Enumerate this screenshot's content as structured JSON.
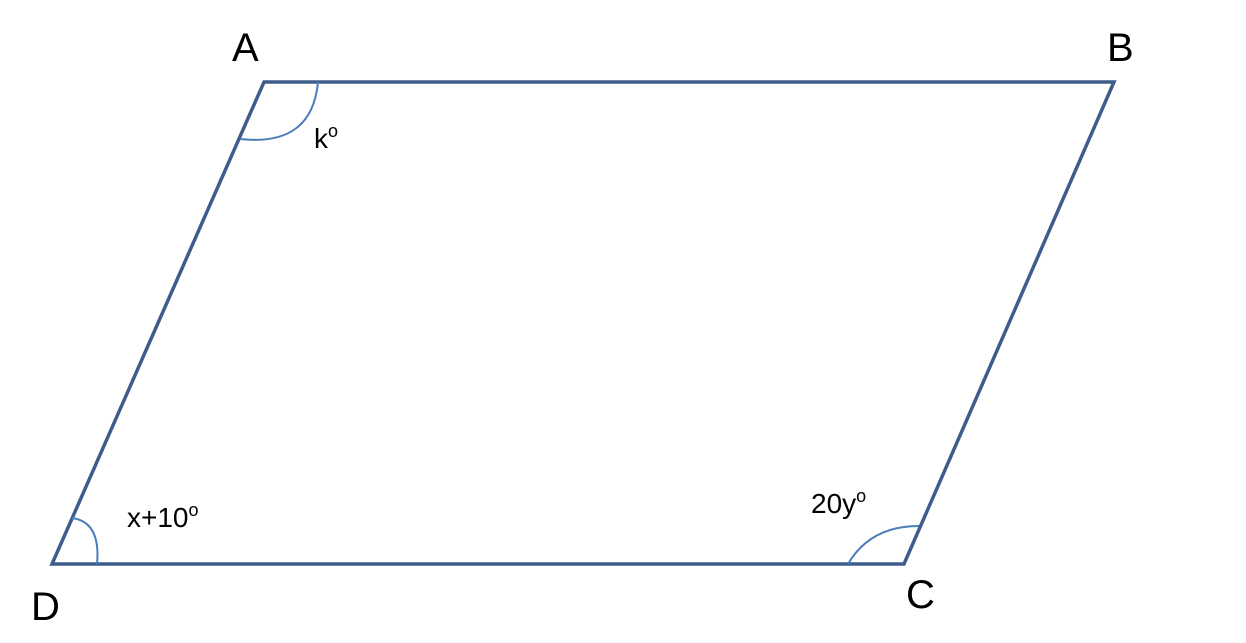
{
  "diagram": {
    "type": "parallelogram",
    "vertices": {
      "A": "A",
      "B": "B",
      "C": "C",
      "D": "D"
    },
    "angles": {
      "A": {
        "base": "k",
        "degree": "o"
      },
      "D": {
        "base": "x+10",
        "degree": "o"
      },
      "C": {
        "base": "20y",
        "degree": "o"
      }
    },
    "colors": {
      "edge": "#3F5D8C",
      "arc": "#4A7EBB",
      "text": "#000000"
    }
  }
}
